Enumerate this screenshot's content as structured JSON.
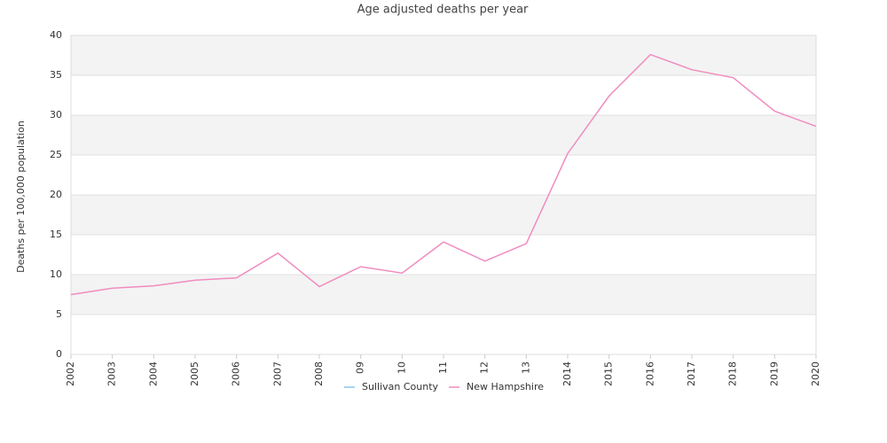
{
  "chart_data": {
    "type": "line",
    "title": "Age adjusted deaths per year",
    "y_label": "Deaths per 100,000 population",
    "categories": [
      "2002",
      "2003",
      "2004",
      "2005",
      "2006",
      "2007",
      "2008",
      "09",
      "10",
      "11",
      "12",
      "13",
      "2014",
      "2015",
      "2016",
      "2017",
      "2018",
      "2019",
      "2020"
    ],
    "series": [
      {
        "name": "Sullivan County",
        "color": "#89c4e8",
        "values": [
          null,
          null,
          null,
          null,
          null,
          null,
          null,
          null,
          null,
          null,
          null,
          null,
          null,
          null,
          null,
          null,
          null,
          null,
          null
        ]
      },
      {
        "name": "New Hampshire",
        "color": "#f08cbe",
        "values": [
          7.5,
          8.3,
          8.6,
          9.3,
          9.6,
          12.7,
          8.5,
          11.0,
          10.2,
          14.1,
          11.7,
          13.9,
          25.2,
          32.4,
          37.6,
          35.7,
          34.7,
          30.5,
          28.6
        ]
      }
    ],
    "ylim": [
      0,
      40
    ],
    "yticks": [
      0,
      5,
      10,
      15,
      20,
      25,
      30,
      35,
      40
    ],
    "grid": true,
    "legend": "bottom"
  }
}
